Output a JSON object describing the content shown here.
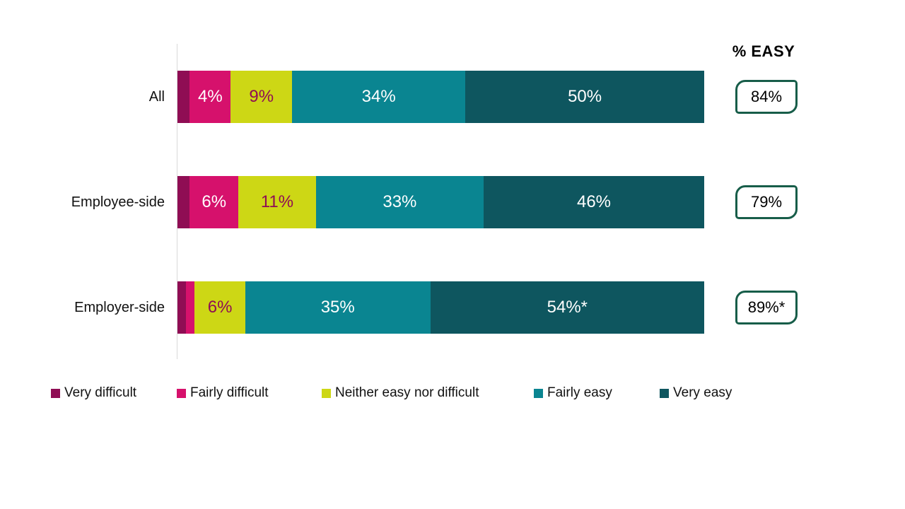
{
  "chart_data": {
    "type": "bar",
    "orientation": "horizontal",
    "stacked": true,
    "unit": "%",
    "easy_header": "% EASY",
    "categories": [
      "All",
      "Employee-side",
      "Employer-side"
    ],
    "series": [
      {
        "name": "Very difficult",
        "color": "#8F0D54",
        "label_color": "#FFFFFF",
        "values": [
          3,
          3,
          2
        ]
      },
      {
        "name": "Fairly difficult",
        "color": "#D6116C",
        "label_color": "#FFFFFF",
        "values": [
          4,
          6,
          2
        ]
      },
      {
        "name": "Neither easy nor difficult",
        "color": "#CDD715",
        "label_color": "#8F0D54",
        "values": [
          9,
          11,
          6
        ]
      },
      {
        "name": "Fairly easy",
        "color": "#0A8591",
        "label_color": "#FFFFFF",
        "values": [
          34,
          33,
          35
        ]
      },
      {
        "name": "Very easy",
        "color": "#0E565F",
        "label_color": "#FFFFFF",
        "values": [
          50,
          46,
          54
        ]
      }
    ],
    "data_labels": [
      [
        "",
        "4%",
        "9%",
        "34%",
        "50%"
      ],
      [
        "",
        "6%",
        "11%",
        "33%",
        "46%"
      ],
      [
        "",
        "",
        "6%",
        "35%",
        "54%*"
      ]
    ],
    "pct_easy_values": [
      "84%",
      "79%",
      "89%*"
    ],
    "axis_color": "#D9D9D9",
    "easy_box_border_color": "#175D49",
    "legend_position": "bottom",
    "xlim": [
      0,
      100
    ],
    "grid": false
  }
}
